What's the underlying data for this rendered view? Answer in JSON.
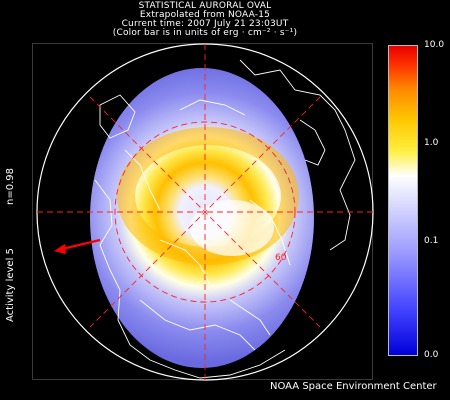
{
  "header": {
    "line1": "STATISTICAL AURORAL OVAL",
    "line2": "Extrapolated from NOAA-15",
    "line3": "Current time: 2007 July 21 23:03UT",
    "line4": "(Color bar is in units of erg · cm⁻² · s⁻¹)"
  },
  "side_labels": {
    "n_value": "n=0.98",
    "activity": "Activity level 5"
  },
  "map": {
    "latitude_label": "60",
    "colors": {
      "background": "#000000",
      "oval_outer": "#8080ee",
      "oval_inner": "#ffcc00",
      "grid": "#ff2020",
      "coastline": "#ffffff",
      "sun_arrow": "#ff0000"
    }
  },
  "colorbar": {
    "ticks": [
      "10.0",
      "1.0",
      "0.1",
      "0.0"
    ],
    "colors": [
      "#0000d8",
      "#4040ff",
      "#9a9aff",
      "#ffffff",
      "#ffef40",
      "#ffc800",
      "#ff8a00",
      "#ff3000",
      "#e80000"
    ]
  },
  "footer": {
    "credit": "NOAA Space Environment Center"
  }
}
